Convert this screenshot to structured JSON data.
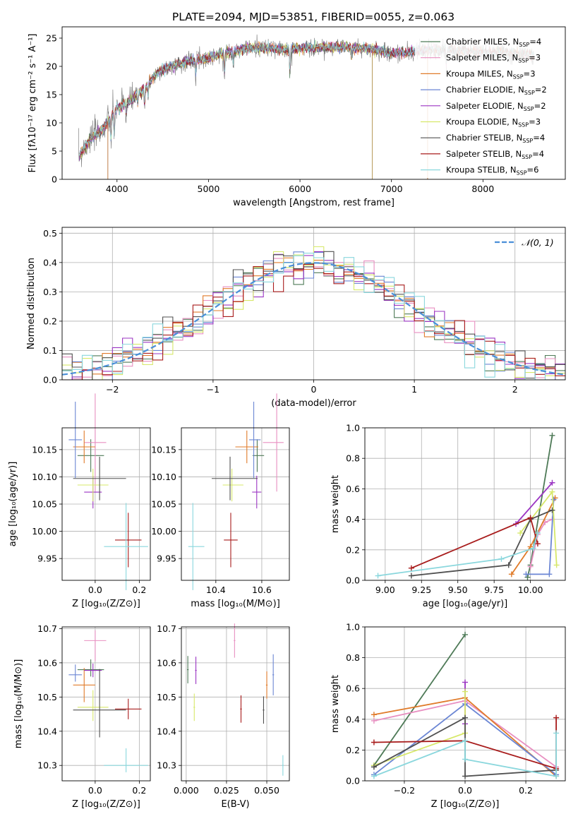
{
  "figure": {
    "title": "PLATE=2094, MJD=53851, FIBERID=0055, z=0.063"
  },
  "models": [
    {
      "name": "Chabrier MILES",
      "nssp": "4",
      "color": "#4e7a57",
      "age": 10.139,
      "age_err": 0.03,
      "Z": -0.02,
      "Z_err": 0.06,
      "mass": 10.58,
      "mass_err_lo": 0.02,
      "mass_err_hi": 0.03,
      "ebv": 0.001,
      "ebv_err_lo": 0.04,
      "ebv_err_hi": 0.04
    },
    {
      "name": "Salpeter MILES",
      "nssp": "3",
      "color": "#e88fc1",
      "age": 10.163,
      "age_err": 0.09,
      "Z": 0.0,
      "Z_err": 0.05,
      "mass": 10.665,
      "mass_err_lo": 0.06,
      "mass_err_hi": 0.03,
      "ebv": 0.03,
      "ebv_err_lo": 0.05,
      "ebv_err_hi": 0.05
    },
    {
      "name": "Kroupa MILES",
      "nssp": "3",
      "color": "#e07b2a",
      "age": 10.155,
      "age_err": 0.03,
      "Z": -0.05,
      "Z_err": 0.05,
      "mass": 10.535,
      "mass_err_lo": 0.05,
      "mass_err_hi": 0.05,
      "ebv": 0.05,
      "ebv_err_lo": 0.04,
      "ebv_err_hi": 0.04
    },
    {
      "name": "Chabrier ELODIE",
      "nssp": "2",
      "color": "#6b86d4",
      "age": 10.168,
      "age_err": 0.07,
      "Z": -0.09,
      "Z_err": 0.03,
      "mass": 10.565,
      "mass_err_lo": 0.02,
      "mass_err_hi": 0.03,
      "ebv": 0.054,
      "ebv_err_lo": 0.06,
      "ebv_err_hi": 0.06
    },
    {
      "name": "Salpeter ELODIE",
      "nssp": "2",
      "color": "#9b35c3",
      "age": 10.072,
      "age_err": 0.03,
      "Z": -0.01,
      "Z_err": 0.04,
      "mass": 10.578,
      "mass_err_lo": 0.02,
      "mass_err_hi": 0.02,
      "ebv": 0.006,
      "ebv_err_lo": 0.04,
      "ebv_err_hi": 0.04
    },
    {
      "name": "Kroupa ELODIE",
      "nssp": "3",
      "color": "#d7e86a",
      "age": 10.085,
      "age_err": 0.03,
      "Z": -0.01,
      "Z_err": 0.07,
      "mass": 10.47,
      "mass_err_lo": 0.04,
      "mass_err_hi": 0.05,
      "ebv": 0.005,
      "ebv_err_lo": 0.04,
      "ebv_err_hi": 0.04
    },
    {
      "name": "Chabrier STELIB",
      "nssp": "4",
      "color": "#505050",
      "age": 10.097,
      "age_err": 0.04,
      "Z": 0.02,
      "Z_err": 0.12,
      "mass": 10.462,
      "mass_err_lo": 0.08,
      "mass_err_hi": 0.12,
      "ebv": 0.048,
      "ebv_err_lo": 0.04,
      "ebv_err_hi": 0.04
    },
    {
      "name": "Salpeter STELIB",
      "nssp": "4",
      "color": "#a81c1c",
      "age": 9.984,
      "age_err": 0.05,
      "Z": 0.15,
      "Z_err": 0.06,
      "mass": 10.465,
      "mass_err_lo": 0.03,
      "mass_err_hi": 0.03,
      "ebv": 0.034,
      "ebv_err_lo": 0.04,
      "ebv_err_hi": 0.04
    },
    {
      "name": "Kroupa STELIB",
      "nssp": "6",
      "color": "#8ad7dd",
      "age": 9.972,
      "age_err": 0.08,
      "Z": 0.14,
      "Z_err": 0.1,
      "mass": 10.3,
      "mass_err_lo": 0.02,
      "mass_err_hi": 0.05,
      "ebv": 0.06,
      "ebv_err_lo": 0.03,
      "ebv_err_hi": 0.03
    }
  ],
  "chart_data": [
    {
      "id": "spectrum",
      "type": "line",
      "title": "PLATE=2094, MJD=53851, FIBERID=0055, z=0.063",
      "xlabel": "wavelength [Angstrom, rest frame]",
      "ylabel": "Flux [fλ10⁻¹⁷ erg cm⁻² s⁻¹ A⁻¹]",
      "xlim": [
        3400,
        8900
      ],
      "ylim": [
        0,
        27
      ],
      "xticks": [
        4000,
        5000,
        6000,
        7000,
        8000
      ],
      "yticks": [
        0,
        5,
        10,
        15,
        20,
        25
      ],
      "grid": false,
      "legend_position": "upper-right",
      "continuum_anchors": [
        [
          3580,
          4.0
        ],
        [
          3700,
          7.0
        ],
        [
          3850,
          9.0
        ],
        [
          3950,
          11.5
        ],
        [
          4000,
          12.5
        ],
        [
          4150,
          14.0
        ],
        [
          4300,
          16.0
        ],
        [
          4450,
          19.0
        ],
        [
          4600,
          20.0
        ],
        [
          4800,
          21.0
        ],
        [
          5000,
          21.5
        ],
        [
          5200,
          22.5
        ],
        [
          5500,
          23.3
        ],
        [
          5800,
          23.0
        ],
        [
          6000,
          23.2
        ],
        [
          6500,
          23.5
        ],
        [
          6800,
          23.0
        ],
        [
          7000,
          22.3
        ],
        [
          7200,
          22.5
        ],
        [
          7400,
          23.0
        ],
        [
          7700,
          22.8
        ],
        [
          8000,
          22.5
        ],
        [
          8300,
          22.3
        ],
        [
          8550,
          22.0
        ]
      ],
      "absorption_features": [
        [
          3934,
          5.0
        ],
        [
          3969,
          4.5
        ],
        [
          4102,
          2.0
        ],
        [
          4227,
          2.0
        ],
        [
          4300,
          3.0
        ],
        [
          4340,
          2.0
        ],
        [
          4861,
          2.0
        ],
        [
          5175,
          4.0
        ],
        [
          5270,
          2.0
        ],
        [
          5890,
          5.0
        ],
        [
          6563,
          2.0
        ],
        [
          7600,
          3.0
        ]
      ],
      "outlier_spikes": [
        [
          3900,
          0.0
        ],
        [
          6790,
          0.0
        ],
        [
          7395,
          0.0
        ]
      ]
    },
    {
      "id": "residuals",
      "type": "area",
      "xlabel": "(data-model)/error",
      "ylabel": "Normed distribution",
      "xlim": [
        -2.5,
        2.5
      ],
      "ylim": [
        0,
        0.52
      ],
      "xticks": [
        -2,
        -1,
        0,
        1,
        2
      ],
      "yticks": [
        0.0,
        0.1,
        0.2,
        0.3,
        0.4,
        0.5
      ],
      "grid": true,
      "legend_position": "upper-right",
      "series": [
        {
          "name": "𝒩(0, 1)",
          "style": "dashed",
          "color": "#4a8fd8",
          "mean": 0,
          "sigma": 1
        }
      ],
      "bin_edges": [
        -2.5,
        2.5
      ],
      "bin_width": 0.1
    },
    {
      "id": "age-vs-Z",
      "type": "scatter",
      "xlabel": "Z [log₁₀(Z/Z⊙)]",
      "ylabel": "age  [log₁₀(age/yr)]",
      "xlim": [
        -0.15,
        0.25
      ],
      "ylim": [
        9.91,
        10.19
      ],
      "xticks": [
        0.0,
        0.2
      ],
      "yticks": [
        9.95,
        10.0,
        10.05,
        10.1,
        10.15
      ],
      "grid": true,
      "x_field": "Z",
      "y_field": "age"
    },
    {
      "id": "age-vs-mass",
      "type": "scatter",
      "xlabel": "mass [log₁₀(M/M⊙)]",
      "ylabel": "",
      "xlim": [
        10.25,
        10.72
      ],
      "ylim": [
        9.91,
        10.19
      ],
      "xticks": [
        10.4,
        10.6
      ],
      "yticks": [
        9.95,
        10.0,
        10.05,
        10.1,
        10.15
      ],
      "grid": true,
      "x_field": "mass",
      "y_field": "age"
    },
    {
      "id": "mass-weight-vs-age",
      "type": "line",
      "xlabel": "age  [log₁₀(age/yr)]",
      "ylabel": "mass weight",
      "xlim": [
        8.86,
        10.24
      ],
      "ylim": [
        0,
        1
      ],
      "xticks": [
        9.0,
        9.25,
        9.5,
        9.75,
        10.0
      ],
      "yticks": [
        0.0,
        0.2,
        0.4,
        0.6,
        0.8,
        1.0
      ],
      "grid": true,
      "series": [
        {
          "name": "Chabrier MILES",
          "x": [
            9.98,
            10.0,
            10.15
          ],
          "y": [
            0.02,
            0.1,
            0.95
          ]
        },
        {
          "name": "Salpeter MILES",
          "x": [
            10.0,
            10.05,
            10.1,
            10.15
          ],
          "y": [
            0.09,
            0.3,
            0.38,
            0.4
          ]
        },
        {
          "name": "Kroupa MILES",
          "x": [
            9.87,
            10.0,
            10.17
          ],
          "y": [
            0.04,
            0.22,
            0.54
          ]
        },
        {
          "name": "Chabrier ELODIE",
          "x": [
            9.97,
            10.13,
            10.16
          ],
          "y": [
            0.04,
            0.04,
            0.53
          ]
        },
        {
          "name": "Salpeter ELODIE",
          "x": [
            9.9,
            10.15
          ],
          "y": [
            0.37,
            0.64
          ]
        },
        {
          "name": "Kroupa ELODIE",
          "x": [
            9.93,
            10.15,
            10.18
          ],
          "y": [
            0.31,
            0.58,
            0.1
          ]
        },
        {
          "name": "Chabrier STELIB",
          "x": [
            9.18,
            9.85,
            10.0,
            10.15
          ],
          "y": [
            0.03,
            0.1,
            0.4,
            0.46
          ]
        },
        {
          "name": "Salpeter STELIB",
          "x": [
            9.18,
            10.0,
            10.05
          ],
          "y": [
            0.08,
            0.41,
            0.24
          ]
        },
        {
          "name": "Kroupa STELIB",
          "x": [
            8.95,
            9.8,
            10.02,
            10.05
          ],
          "y": [
            0.03,
            0.14,
            0.21,
            0.31
          ]
        }
      ]
    },
    {
      "id": "mass-vs-Z",
      "type": "scatter",
      "xlabel": "Z [log₁₀(Z/Z⊙)]",
      "ylabel": "mass [log₁₀(M/M⊙)]",
      "xlim": [
        -0.15,
        0.25
      ],
      "ylim": [
        10.255,
        10.705
      ],
      "xticks": [
        0.0,
        0.2
      ],
      "yticks": [
        10.3,
        10.4,
        10.5,
        10.6,
        10.7
      ],
      "grid": true,
      "x_field": "Z",
      "y_field": "mass"
    },
    {
      "id": "mass-vs-ebv",
      "type": "scatter",
      "xlabel": "E(B-V)",
      "ylabel": "",
      "xlim": [
        -0.003,
        0.064
      ],
      "ylim": [
        10.255,
        10.705
      ],
      "xticks": [
        0.0,
        0.025,
        0.05
      ],
      "yticks": [
        10.3,
        10.4,
        10.5,
        10.6,
        10.7
      ],
      "grid": true,
      "x_field": "ebv",
      "y_field": "mass"
    },
    {
      "id": "mass-weight-vs-Z",
      "type": "line",
      "xlabel": "Z [log₁₀(Z/Z⊙)]",
      "ylabel": "mass weight",
      "xlim": [
        -0.33,
        0.33
      ],
      "ylim": [
        0,
        1
      ],
      "xticks": [
        -0.2,
        0.0,
        0.2
      ],
      "yticks": [
        0.0,
        0.2,
        0.4,
        0.6,
        0.8,
        1.0
      ],
      "grid": true,
      "series": [
        {
          "name": "Chabrier MILES",
          "x": [
            -0.3,
            0.0
          ],
          "y": [
            0.1,
            0.95
          ]
        },
        {
          "name": "Salpeter MILES",
          "x": [
            -0.3,
            0.0,
            0.3
          ],
          "y": [
            0.39,
            0.52,
            0.09
          ]
        },
        {
          "name": "Kroupa MILES",
          "x": [
            -0.3,
            0.0,
            0.3
          ],
          "y": [
            0.43,
            0.54,
            0.03
          ]
        },
        {
          "name": "Chabrier ELODIE",
          "x": [
            -0.3,
            0.0,
            0.3
          ],
          "y": [
            0.04,
            0.5,
            0.04
          ]
        },
        {
          "name": "Salpeter ELODIE",
          "x": [
            0.0,
            0.0
          ],
          "y": [
            0.64,
            0.37
          ]
        },
        {
          "name": "Kroupa ELODIE",
          "x": [
            -0.3,
            0.0,
            0.0
          ],
          "y": [
            0.1,
            0.31,
            0.58
          ]
        },
        {
          "name": "Chabrier STELIB",
          "x": [
            -0.3,
            0.0,
            0.0,
            0.3
          ],
          "y": [
            0.09,
            0.41,
            0.03,
            0.07
          ]
        },
        {
          "name": "Salpeter STELIB",
          "x": [
            -0.3,
            0.0,
            0.3,
            0.3
          ],
          "y": [
            0.25,
            0.26,
            0.08,
            0.41
          ]
        },
        {
          "name": "Kroupa STELIB",
          "x": [
            -0.3,
            0.0,
            0.0,
            0.3,
            0.3
          ],
          "y": [
            0.03,
            0.26,
            0.14,
            0.03,
            0.31
          ]
        }
      ]
    }
  ]
}
